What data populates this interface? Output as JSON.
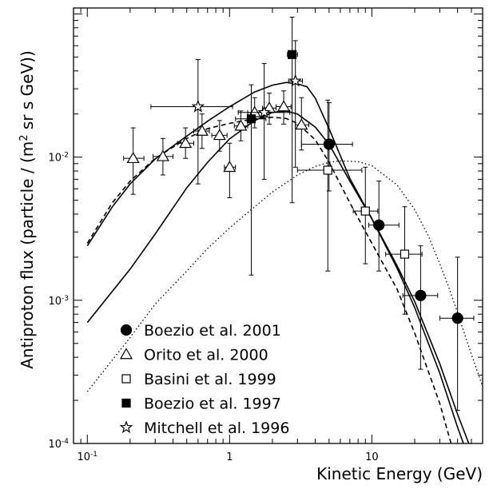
{
  "chart_data": {
    "type": "scatter",
    "title": "",
    "xlabel": "Kinetic Energy (GeV)",
    "ylabel_main": "Antiproton flux (particle / (m",
    "ylabel_sup": "2",
    "ylabel_tail": " sr s GeV))",
    "xscale": "log",
    "yscale": "log",
    "xlim": [
      0.08,
      60
    ],
    "ylim": [
      0.0001,
      0.11
    ],
    "grid": false,
    "legend_placement": "bottom-left",
    "x_ticks": [
      {
        "value": 0.1,
        "label": "10",
        "sup": "-1"
      },
      {
        "value": 1,
        "label": "1",
        "sup": ""
      },
      {
        "value": 10,
        "label": "10",
        "sup": ""
      }
    ],
    "y_ticks": [
      {
        "value": 0.0001,
        "label": "10",
        "sup": "-4"
      },
      {
        "value": 0.001,
        "label": "10",
        "sup": "-3"
      },
      {
        "value": 0.01,
        "label": "10",
        "sup": "-2"
      }
    ],
    "series": [
      {
        "name": "Boezio et al. 2001",
        "marker": "filled-circle",
        "points": [
          {
            "x": 5.0,
            "y": 0.0123,
            "xlo": 3.2,
            "xhi": 7.3,
            "ylo": 0.0058,
            "yhi": 0.024
          },
          {
            "x": 11.2,
            "y": 0.00335,
            "xlo": 9.5,
            "xhi": 15.5,
            "ylo": 0.0016,
            "yhi": 0.0068
          },
          {
            "x": 22.0,
            "y": 0.00108,
            "xlo": 16.5,
            "xhi": 29.0,
            "ylo": 0.00033,
            "yhi": 0.0024
          },
          {
            "x": 40.0,
            "y": 0.00075,
            "xlo": 30.0,
            "xhi": 52.0,
            "ylo": 0.00017,
            "yhi": 0.002
          }
        ]
      },
      {
        "name": "Orito et al. 2000",
        "marker": "open-triangle",
        "points": [
          {
            "x": 0.21,
            "y": 0.0098,
            "xlo": 0.18,
            "xhi": 0.25,
            "ylo": 0.0055,
            "yhi": 0.016
          },
          {
            "x": 0.34,
            "y": 0.0101,
            "xlo": 0.29,
            "xhi": 0.4,
            "ylo": 0.0075,
            "yhi": 0.0135
          },
          {
            "x": 0.49,
            "y": 0.0125,
            "xlo": 0.43,
            "xhi": 0.56,
            "ylo": 0.0098,
            "yhi": 0.016
          },
          {
            "x": 0.64,
            "y": 0.0152,
            "xlo": 0.56,
            "xhi": 0.72,
            "ylo": 0.0115,
            "yhi": 0.02
          },
          {
            "x": 0.85,
            "y": 0.0142,
            "xlo": 0.75,
            "xhi": 0.96,
            "ylo": 0.011,
            "yhi": 0.018
          },
          {
            "x": 1.0,
            "y": 0.0085,
            "xlo": 0.92,
            "xhi": 1.1,
            "ylo": 0.0052,
            "yhi": 0.0125
          },
          {
            "x": 1.2,
            "y": 0.0165,
            "xlo": 1.08,
            "xhi": 1.34,
            "ylo": 0.013,
            "yhi": 0.021
          },
          {
            "x": 1.5,
            "y": 0.0205,
            "xlo": 1.34,
            "xhi": 1.68,
            "ylo": 0.016,
            "yhi": 0.026
          },
          {
            "x": 1.9,
            "y": 0.022,
            "xlo": 1.7,
            "xhi": 2.12,
            "ylo": 0.017,
            "yhi": 0.028
          },
          {
            "x": 2.4,
            "y": 0.0225,
            "xlo": 2.12,
            "xhi": 2.7,
            "ylo": 0.017,
            "yhi": 0.029
          },
          {
            "x": 3.2,
            "y": 0.0168,
            "xlo": 2.9,
            "xhi": 3.6,
            "ylo": 0.0112,
            "yhi": 0.026
          }
        ]
      },
      {
        "name": "Basini et al. 1999",
        "marker": "open-square",
        "points": [
          {
            "x": 4.9,
            "y": 0.0081,
            "xlo": 3.0,
            "xhi": 8.5,
            "ylo": 0.0016,
            "yhi": 0.025
          },
          {
            "x": 9.0,
            "y": 0.0042,
            "xlo": 7.4,
            "xhi": 11.0,
            "ylo": 0.0018,
            "yhi": 0.0085
          },
          {
            "x": 17.0,
            "y": 0.0021,
            "xlo": 12.5,
            "xhi": 22.5,
            "ylo": 0.0008,
            "yhi": 0.0045
          }
        ]
      },
      {
        "name": "Boezio et al. 1997",
        "marker": "filled-square",
        "points": [
          {
            "x": 1.42,
            "y": 0.0185,
            "xlo": 1.1,
            "xhi": 1.8,
            "ylo": 0.0015,
            "yhi": 0.032
          },
          {
            "x": 2.75,
            "y": 0.052,
            "xlo": 2.55,
            "xhi": 3.0,
            "ylo": 0.0048,
            "yhi": 0.095
          }
        ]
      },
      {
        "name": "Mitchell et al. 1996",
        "marker": "open-star",
        "points": [
          {
            "x": 0.6,
            "y": 0.0225,
            "xlo": 0.28,
            "xhi": 1.05,
            "ylo": 0.0065,
            "yhi": 0.048
          },
          {
            "x": 1.75,
            "y": 0.0205,
            "xlo": 1.15,
            "xhi": 2.65,
            "ylo": 0.007,
            "yhi": 0.045
          },
          {
            "x": 2.9,
            "y": 0.034,
            "xlo": 2.6,
            "xhi": 3.25,
            "ylo": 0.0085,
            "yhi": 0.065
          }
        ]
      }
    ],
    "curves": [
      {
        "style": "solid",
        "points": [
          [
            0.1,
            0.0024
          ],
          [
            0.15,
            0.0045
          ],
          [
            0.2,
            0.0065
          ],
          [
            0.3,
            0.0097
          ],
          [
            0.5,
            0.014
          ],
          [
            0.7,
            0.0178
          ],
          [
            1.0,
            0.0225
          ],
          [
            1.5,
            0.0285
          ],
          [
            2.0,
            0.0318
          ],
          [
            2.5,
            0.0332
          ],
          [
            3.0,
            0.0325
          ],
          [
            3.5,
            0.031
          ],
          [
            4.0,
            0.0258
          ],
          [
            5.0,
            0.0158
          ],
          [
            7.0,
            0.0071
          ],
          [
            10.0,
            0.00372
          ],
          [
            15.0,
            0.00175
          ],
          [
            20.0,
            0.00098
          ],
          [
            30.0,
            0.00036
          ],
          [
            40.0,
            0.00016
          ],
          [
            48.0,
            0.0001
          ]
        ]
      },
      {
        "style": "solid",
        "points": [
          [
            0.1,
            0.0007
          ],
          [
            0.2,
            0.00165
          ],
          [
            0.3,
            0.0029
          ],
          [
            0.5,
            0.0061
          ],
          [
            0.7,
            0.0092
          ],
          [
            1.0,
            0.0134
          ],
          [
            1.5,
            0.018
          ],
          [
            2.0,
            0.0205
          ],
          [
            2.5,
            0.021
          ],
          [
            3.0,
            0.02
          ],
          [
            4.0,
            0.0162
          ],
          [
            5.0,
            0.0123
          ],
          [
            7.0,
            0.0068
          ],
          [
            10.0,
            0.0037
          ],
          [
            15.0,
            0.00168
          ],
          [
            20.0,
            0.00089
          ],
          [
            30.0,
            0.00031
          ],
          [
            40.0,
            0.00013
          ],
          [
            44.0,
            0.0001
          ]
        ]
      },
      {
        "style": "dashed",
        "points": [
          [
            0.1,
            0.0025
          ],
          [
            0.15,
            0.0048
          ],
          [
            0.2,
            0.0068
          ],
          [
            0.3,
            0.0098
          ],
          [
            0.5,
            0.0135
          ],
          [
            0.7,
            0.0158
          ],
          [
            1.0,
            0.0172
          ],
          [
            1.5,
            0.0185
          ],
          [
            2.0,
            0.019
          ],
          [
            2.5,
            0.0186
          ],
          [
            3.0,
            0.0172
          ],
          [
            4.0,
            0.0132
          ],
          [
            5.0,
            0.0092
          ],
          [
            7.0,
            0.0048
          ],
          [
            10.0,
            0.0025
          ],
          [
            15.0,
            0.0012
          ],
          [
            20.0,
            0.00059
          ],
          [
            30.0,
            0.00019
          ],
          [
            36.0,
            0.0001
          ]
        ]
      },
      {
        "style": "dotted",
        "points": [
          [
            0.1,
            0.00023
          ],
          [
            0.2,
            0.00055
          ],
          [
            0.3,
            0.00094
          ],
          [
            0.5,
            0.0016
          ],
          [
            0.7,
            0.0023
          ],
          [
            1.0,
            0.0032
          ],
          [
            1.5,
            0.0045
          ],
          [
            2.0,
            0.0057
          ],
          [
            3.0,
            0.0075
          ],
          [
            4.0,
            0.0086
          ],
          [
            5.0,
            0.0092
          ],
          [
            6.0,
            0.0094
          ],
          [
            8.0,
            0.0093
          ],
          [
            10.0,
            0.0087
          ],
          [
            15.0,
            0.0064
          ],
          [
            20.0,
            0.0043
          ],
          [
            25.0,
            0.0028
          ],
          [
            30.0,
            0.0018
          ],
          [
            35.0,
            0.0012
          ],
          [
            40.0,
            0.00082
          ],
          [
            50.0,
            0.00042
          ],
          [
            60.0,
            0.00025
          ]
        ]
      }
    ]
  }
}
